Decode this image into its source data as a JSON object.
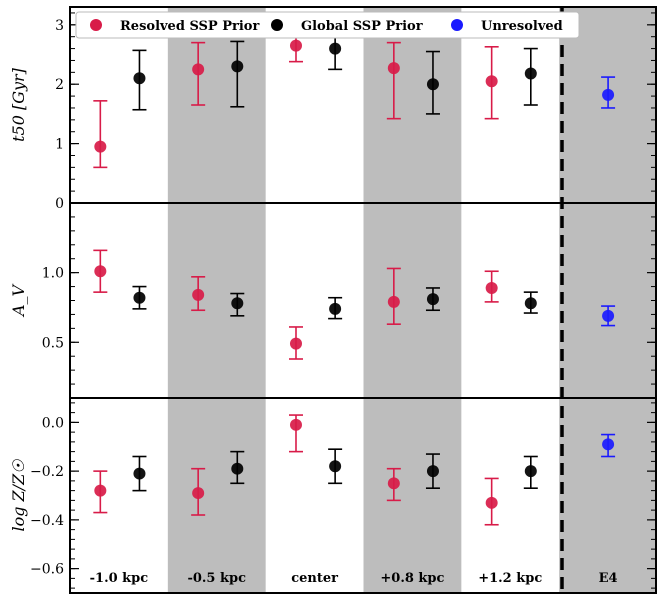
{
  "chart_data": {
    "type": "scatter",
    "categories": [
      "-1.0 kpc",
      "-0.5 kpc",
      "center",
      "+0.8 kpc",
      "+1.2 kpc",
      "E4"
    ],
    "shaded_columns": [
      1,
      3,
      5
    ],
    "legend": {
      "placement": "top",
      "entries": [
        {
          "label": "Resolved SSP Prior",
          "color": "#d81b48"
        },
        {
          "label": "Global SSP Prior",
          "color": "#000000"
        },
        {
          "label": "Unresolved",
          "color": "#1a1aff"
        }
      ]
    },
    "panels": [
      {
        "ylabel": "t50 [Gyr]",
        "ylim": [
          0,
          3.3
        ],
        "yticks": [
          0,
          1,
          2,
          3
        ],
        "tick_labels": [
          "0",
          "1",
          "2",
          "3"
        ],
        "series": [
          {
            "name": "Resolved SSP Prior",
            "color": "#d81b48",
            "points": [
              {
                "col": 0,
                "y": 0.95,
                "lo": 0.6,
                "hi": 1.72
              },
              {
                "col": 1,
                "y": 2.25,
                "lo": 1.65,
                "hi": 2.7
              },
              {
                "col": 2,
                "y": 2.65,
                "lo": 2.38,
                "hi": 2.85
              },
              {
                "col": 3,
                "y": 2.27,
                "lo": 1.42,
                "hi": 2.7
              },
              {
                "col": 4,
                "y": 2.05,
                "lo": 1.42,
                "hi": 2.63
              }
            ]
          },
          {
            "name": "Global SSP Prior",
            "color": "#000000",
            "points": [
              {
                "col": 0,
                "y": 2.1,
                "lo": 1.57,
                "hi": 2.57
              },
              {
                "col": 1,
                "y": 2.3,
                "lo": 1.62,
                "hi": 2.72
              },
              {
                "col": 2,
                "y": 2.6,
                "lo": 2.25,
                "hi": 2.83
              },
              {
                "col": 3,
                "y": 2.0,
                "lo": 1.5,
                "hi": 2.55
              },
              {
                "col": 4,
                "y": 2.18,
                "lo": 1.65,
                "hi": 2.6
              }
            ]
          },
          {
            "name": "Unresolved",
            "color": "#1a1aff",
            "points": [
              {
                "col": 5,
                "y": 1.82,
                "lo": 1.6,
                "hi": 2.12
              }
            ]
          }
        ]
      },
      {
        "ylabel": "A_V",
        "ylim": [
          0.1,
          1.5
        ],
        "yticks": [
          0.5,
          1.0
        ],
        "tick_labels": [
          "0.5",
          "1.0"
        ],
        "series": [
          {
            "name": "Resolved SSP Prior",
            "color": "#d81b48",
            "points": [
              {
                "col": 0,
                "y": 1.01,
                "lo": 0.86,
                "hi": 1.16
              },
              {
                "col": 1,
                "y": 0.84,
                "lo": 0.73,
                "hi": 0.97
              },
              {
                "col": 2,
                "y": 0.49,
                "lo": 0.38,
                "hi": 0.61
              },
              {
                "col": 3,
                "y": 0.79,
                "lo": 0.63,
                "hi": 1.03
              },
              {
                "col": 4,
                "y": 0.89,
                "lo": 0.79,
                "hi": 1.01
              }
            ]
          },
          {
            "name": "Global SSP Prior",
            "color": "#000000",
            "points": [
              {
                "col": 0,
                "y": 0.82,
                "lo": 0.74,
                "hi": 0.9
              },
              {
                "col": 1,
                "y": 0.78,
                "lo": 0.69,
                "hi": 0.85
              },
              {
                "col": 2,
                "y": 0.74,
                "lo": 0.67,
                "hi": 0.82
              },
              {
                "col": 3,
                "y": 0.81,
                "lo": 0.73,
                "hi": 0.89
              },
              {
                "col": 4,
                "y": 0.78,
                "lo": 0.71,
                "hi": 0.86
              }
            ]
          },
          {
            "name": "Unresolved",
            "color": "#1a1aff",
            "points": [
              {
                "col": 5,
                "y": 0.69,
                "lo": 0.62,
                "hi": 0.76
              }
            ]
          }
        ]
      },
      {
        "ylabel": "log Z/Z☉",
        "ylim": [
          -0.7,
          0.1
        ],
        "yticks": [
          -0.6,
          -0.4,
          -0.2,
          0.0
        ],
        "tick_labels": [
          "−0.6",
          "−0.4",
          "−0.2",
          "0.0"
        ],
        "series": [
          {
            "name": "Resolved SSP Prior",
            "color": "#d81b48",
            "points": [
              {
                "col": 0,
                "y": -0.28,
                "lo": -0.37,
                "hi": -0.2
              },
              {
                "col": 1,
                "y": -0.29,
                "lo": -0.38,
                "hi": -0.19
              },
              {
                "col": 2,
                "y": -0.01,
                "lo": -0.12,
                "hi": 0.03
              },
              {
                "col": 3,
                "y": -0.25,
                "lo": -0.32,
                "hi": -0.19
              },
              {
                "col": 4,
                "y": -0.33,
                "lo": -0.42,
                "hi": -0.23
              }
            ]
          },
          {
            "name": "Global SSP Prior",
            "color": "#000000",
            "points": [
              {
                "col": 0,
                "y": -0.21,
                "lo": -0.28,
                "hi": -0.14
              },
              {
                "col": 1,
                "y": -0.19,
                "lo": -0.25,
                "hi": -0.12
              },
              {
                "col": 2,
                "y": -0.18,
                "lo": -0.25,
                "hi": -0.11
              },
              {
                "col": 3,
                "y": -0.2,
                "lo": -0.27,
                "hi": -0.13
              },
              {
                "col": 4,
                "y": -0.2,
                "lo": -0.27,
                "hi": -0.14
              }
            ]
          },
          {
            "name": "Unresolved",
            "color": "#1a1aff",
            "points": [
              {
                "col": 5,
                "y": -0.09,
                "lo": -0.14,
                "hi": -0.05
              }
            ]
          }
        ]
      }
    ]
  }
}
